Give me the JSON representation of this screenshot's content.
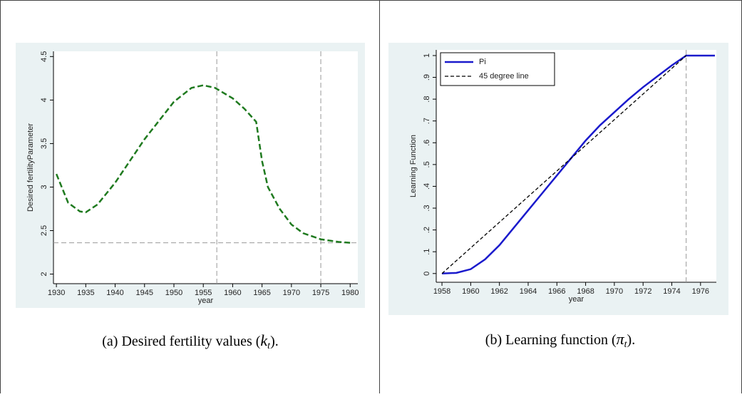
{
  "chart_data": [
    {
      "type": "line",
      "ylabel": "Desired fertilityParameter",
      "xlabel": "year",
      "caption": {
        "prefix": "(a) Desired fertility values (",
        "symbol": "k",
        "subscript": "t",
        "suffix": ")."
      },
      "xlim": [
        1929.5,
        1981.3
      ],
      "ylim": [
        1.89,
        4.56
      ],
      "xticks": [
        1930,
        1935,
        1940,
        1945,
        1950,
        1955,
        1960,
        1965,
        1970,
        1975,
        1980
      ],
      "yticks": [
        2,
        2.5,
        3,
        3.5,
        4,
        4.5
      ],
      "xlines": [
        1957.3,
        1975
      ],
      "ylines": [
        2.36
      ],
      "series": [
        {
          "color": "#1f7a1f",
          "dash": true,
          "x": [
            1930,
            1932,
            1934,
            1935,
            1937,
            1940,
            1945,
            1950,
            1953,
            1955,
            1957,
            1960,
            1962,
            1964,
            1965,
            1966,
            1968,
            1970,
            1972,
            1975,
            1978,
            1980
          ],
          "values": [
            3.15,
            2.82,
            2.72,
            2.71,
            2.8,
            3.05,
            3.55,
            3.98,
            4.14,
            4.17,
            4.14,
            4.02,
            3.9,
            3.75,
            3.3,
            3.0,
            2.75,
            2.57,
            2.47,
            2.4,
            2.37,
            2.36
          ]
        }
      ]
    },
    {
      "type": "line",
      "ylabel": "Learning Function",
      "xlabel": "year",
      "caption": {
        "prefix": "(b) Learning function (",
        "symbol": "π",
        "subscript": "t",
        "suffix": ")."
      },
      "xlim": [
        1957.6,
        1977.1
      ],
      "ylim": [
        -0.04,
        1.026
      ],
      "xticks": [
        1958,
        1960,
        1962,
        1964,
        1966,
        1968,
        1970,
        1972,
        1974,
        1976
      ],
      "yticks": [
        0,
        {
          "value": 0.1,
          "label": ".1"
        },
        {
          "value": 0.2,
          "label": ".2"
        },
        {
          "value": 0.3,
          "label": ".3"
        },
        {
          "value": 0.4,
          "label": ".4"
        },
        {
          "value": 0.5,
          "label": ".5"
        },
        {
          "value": 0.6,
          "label": ".6"
        },
        {
          "value": 0.7,
          "label": ".7"
        },
        {
          "value": 0.8,
          "label": ".8"
        },
        {
          "value": 0.9,
          "label": ".9"
        },
        1
      ],
      "xlines": [
        1975
      ],
      "ylines": [],
      "legend": "top-left",
      "series": [
        {
          "name": "Pi",
          "color": "#1a1acc",
          "dash": false,
          "x": [
            1958,
            1959,
            1960,
            1961,
            1962,
            1963,
            1964,
            1965,
            1966,
            1967,
            1968,
            1969,
            1970,
            1971,
            1972,
            1973,
            1974,
            1975,
            1976,
            1977
          ],
          "values": [
            0,
            0.003,
            0.02,
            0.065,
            0.13,
            0.21,
            0.29,
            0.37,
            0.45,
            0.53,
            0.61,
            0.68,
            0.74,
            0.8,
            0.855,
            0.905,
            0.955,
            1,
            1,
            1
          ]
        },
        {
          "name": "45 degree line",
          "color": "#000000",
          "dash": true,
          "x": [
            1958,
            1975
          ],
          "values": [
            0,
            1
          ]
        }
      ]
    }
  ]
}
